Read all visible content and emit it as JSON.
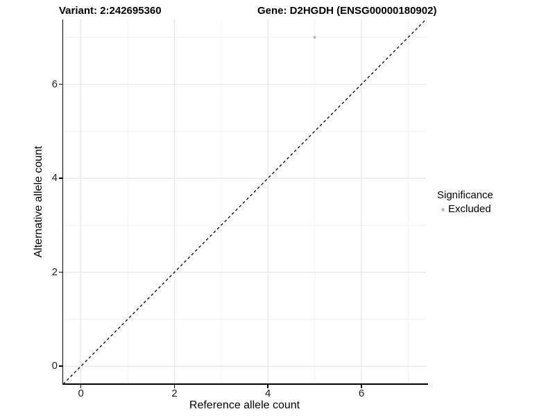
{
  "chart_data": {
    "type": "scatter",
    "title_left": "Variant: 2:242695360",
    "title_right": "Gene: D2HGDH (ENSG00000180902)",
    "xlabel": "Reference allele count",
    "ylabel": "Alternative allele count",
    "xlim": [
      -0.38,
      7.38
    ],
    "ylim": [
      -0.38,
      7.38
    ],
    "x_major_ticks": [
      0,
      2,
      4,
      6
    ],
    "y_major_ticks": [
      0,
      2,
      4,
      6
    ],
    "x_minor_gridlines": [
      1,
      3,
      5,
      7
    ],
    "y_minor_gridlines": [
      1,
      3,
      5,
      7
    ],
    "grid": true,
    "reference_line": {
      "type": "identity",
      "style": "dashed",
      "color": "#000000",
      "from": [
        -0.38,
        -0.38
      ],
      "to": [
        7.38,
        7.38
      ]
    },
    "series": [
      {
        "name": "Excluded",
        "color": "#bcbcbc",
        "points": [
          {
            "x": 5,
            "y": 7
          }
        ]
      }
    ],
    "legend": {
      "title": "Significance",
      "position": "right",
      "entries": [
        {
          "label": "Excluded",
          "color": "#bcbcbc"
        }
      ]
    },
    "colors": {
      "major_gridline": "#e5e5e5",
      "minor_gridline": "#f1f1f1",
      "axis_line": "#000000",
      "point": "#bcbcbc"
    }
  }
}
